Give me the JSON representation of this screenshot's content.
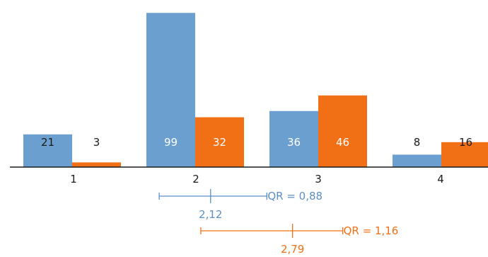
{
  "chart_data": {
    "type": "bar",
    "categories": [
      "1",
      "2",
      "3",
      "4"
    ],
    "series": [
      {
        "color": "#6a9fd0",
        "values": [
          21,
          99,
          36,
          8
        ]
      },
      {
        "color": "#f27015",
        "values": [
          3,
          32,
          46,
          16
        ]
      }
    ],
    "data_labels": [
      [
        "21",
        "99",
        "36",
        "8"
      ],
      [
        "3",
        "32",
        "46",
        "16"
      ]
    ],
    "ylim": [
      0,
      105
    ],
    "summaries": [
      {
        "color": "#5b8fc5",
        "mean": 2.12,
        "mean_label": "2,12",
        "qr": 0.88,
        "qr_label": "QR = 0,88",
        "range": [
          1.7,
          2.58
        ]
      },
      {
        "color": "#f27015",
        "mean": 2.79,
        "mean_label": "2,79",
        "qr": 1.16,
        "qr_label": "QR = 1,16",
        "range": [
          2.04,
          3.2
        ]
      }
    ]
  }
}
